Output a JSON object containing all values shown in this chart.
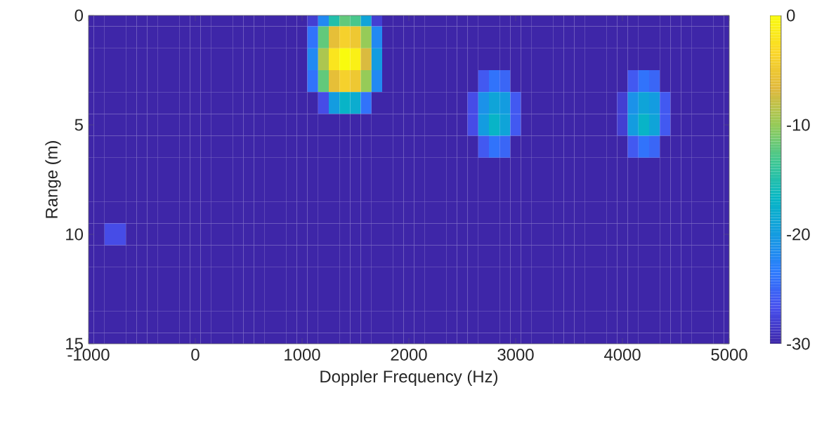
{
  "chart_data": {
    "type": "heatmap",
    "xlabel": "Doppler Frequency (Hz)",
    "ylabel": "Range (m)",
    "x": [
      -1000,
      -900,
      -800,
      -700,
      -600,
      -500,
      -400,
      -300,
      -200,
      -100,
      0,
      100,
      200,
      300,
      400,
      500,
      600,
      700,
      800,
      900,
      1000,
      1100,
      1200,
      1300,
      1400,
      1500,
      1600,
      1700,
      1800,
      1900,
      2000,
      2100,
      2200,
      2300,
      2400,
      2500,
      2600,
      2700,
      2800,
      2900,
      3000,
      3100,
      3200,
      3300,
      3400,
      3500,
      3600,
      3700,
      3800,
      3900,
      4000,
      4100,
      4200,
      4300,
      4400,
      4500,
      4600,
      4700,
      4800,
      4900,
      5000
    ],
    "y": [
      0,
      1,
      2,
      3,
      4,
      5,
      6,
      7,
      8,
      9,
      10,
      11,
      12,
      13,
      14,
      15
    ],
    "cells": [
      [
        -30,
        -30,
        -30,
        -30,
        -30,
        -30,
        -30,
        -30,
        -30,
        -30,
        -30,
        -30,
        -30,
        -30,
        -30,
        -30,
        -30,
        -30,
        -30,
        -30,
        -30,
        -28,
        -22,
        -15,
        -12,
        -13,
        -19,
        -28,
        -30,
        -30,
        -30,
        -30,
        -30,
        -30,
        -30,
        -30,
        -30,
        -30,
        -30,
        -30,
        -30,
        -30,
        -30,
        -30,
        -30,
        -30,
        -30,
        -30,
        -30,
        -30,
        -30,
        -30,
        -30,
        -30,
        -30,
        -30,
        -30,
        -30,
        -30,
        -30,
        -30
      ],
      [
        -30,
        -30,
        -30,
        -30,
        -30,
        -30,
        -30,
        -30,
        -30,
        -30,
        -30,
        -30,
        -30,
        -30,
        -30,
        -30,
        -30,
        -30,
        -30,
        -30,
        -30,
        -24,
        -12,
        -6,
        -4,
        -5,
        -10,
        -22,
        -30,
        -30,
        -30,
        -30,
        -30,
        -30,
        -30,
        -30,
        -30,
        -30,
        -30,
        -30,
        -30,
        -30,
        -30,
        -30,
        -30,
        -30,
        -30,
        -30,
        -30,
        -30,
        -30,
        -30,
        -30,
        -30,
        -30,
        -30,
        -30,
        -30,
        -30,
        -30,
        -30
      ],
      [
        -30,
        -30,
        -30,
        -30,
        -30,
        -30,
        -30,
        -30,
        -30,
        -30,
        -30,
        -30,
        -30,
        -30,
        -30,
        -30,
        -30,
        -30,
        -30,
        -30,
        -30,
        -22,
        -9,
        -2,
        0,
        -1,
        -7,
        -20,
        -30,
        -30,
        -30,
        -30,
        -30,
        -30,
        -30,
        -30,
        -30,
        -30,
        -30,
        -30,
        -30,
        -30,
        -30,
        -30,
        -30,
        -30,
        -30,
        -30,
        -30,
        -30,
        -30,
        -30,
        -30,
        -30,
        -30,
        -30,
        -30,
        -30,
        -30,
        -30,
        -30
      ],
      [
        -30,
        -30,
        -30,
        -30,
        -30,
        -30,
        -30,
        -30,
        -30,
        -30,
        -30,
        -30,
        -30,
        -30,
        -30,
        -30,
        -30,
        -30,
        -30,
        -30,
        -30,
        -24,
        -12,
        -6,
        -4,
        -5,
        -10,
        -22,
        -30,
        -30,
        -30,
        -30,
        -30,
        -30,
        -30,
        -30,
        -30,
        -26,
        -24,
        -25,
        -30,
        -30,
        -30,
        -30,
        -30,
        -30,
        -30,
        -30,
        -30,
        -30,
        -30,
        -26,
        -24,
        -25,
        -30,
        -30,
        -30,
        -30,
        -30,
        -30,
        -30
      ],
      [
        -30,
        -30,
        -30,
        -30,
        -30,
        -30,
        -30,
        -30,
        -30,
        -30,
        -30,
        -30,
        -30,
        -30,
        -30,
        -30,
        -30,
        -30,
        -30,
        -30,
        -30,
        -30,
        -27,
        -20,
        -17,
        -18,
        -24,
        -30,
        -30,
        -30,
        -30,
        -30,
        -30,
        -30,
        -30,
        -30,
        -27,
        -21,
        -19,
        -20,
        -26,
        -30,
        -30,
        -30,
        -30,
        -30,
        -30,
        -30,
        -30,
        -30,
        -28,
        -21,
        -19,
        -20,
        -26,
        -30,
        -30,
        -30,
        -30,
        -30,
        -30
      ],
      [
        -30,
        -30,
        -30,
        -30,
        -30,
        -30,
        -30,
        -30,
        -30,
        -30,
        -30,
        -30,
        -30,
        -30,
        -30,
        -30,
        -30,
        -30,
        -30,
        -30,
        -30,
        -30,
        -30,
        -30,
        -30,
        -30,
        -30,
        -30,
        -30,
        -30,
        -30,
        -30,
        -30,
        -30,
        -30,
        -30,
        -27,
        -20,
        -17,
        -19,
        -26,
        -30,
        -30,
        -30,
        -30,
        -30,
        -30,
        -30,
        -30,
        -30,
        -28,
        -20,
        -17,
        -19,
        -26,
        -30,
        -30,
        -30,
        -30,
        -30,
        -30
      ],
      [
        -30,
        -30,
        -30,
        -30,
        -30,
        -30,
        -30,
        -30,
        -30,
        -30,
        -30,
        -30,
        -30,
        -30,
        -30,
        -30,
        -30,
        -30,
        -30,
        -30,
        -30,
        -30,
        -30,
        -30,
        -30,
        -30,
        -30,
        -30,
        -30,
        -30,
        -30,
        -30,
        -30,
        -30,
        -30,
        -30,
        -30,
        -26,
        -24,
        -25,
        -30,
        -30,
        -30,
        -30,
        -30,
        -30,
        -30,
        -30,
        -30,
        -30,
        -30,
        -26,
        -24,
        -25,
        -30,
        -30,
        -30,
        -30,
        -30,
        -30,
        -30
      ],
      [
        -30,
        -30,
        -30,
        -30,
        -30,
        -30,
        -30,
        -30,
        -30,
        -30,
        -30,
        -30,
        -30,
        -30,
        -30,
        -30,
        -30,
        -30,
        -30,
        -30,
        -30,
        -30,
        -30,
        -30,
        -30,
        -30,
        -30,
        -30,
        -30,
        -30,
        -30,
        -30,
        -30,
        -30,
        -30,
        -30,
        -30,
        -30,
        -30,
        -30,
        -30,
        -30,
        -30,
        -30,
        -30,
        -30,
        -30,
        -30,
        -30,
        -30,
        -30,
        -30,
        -30,
        -30,
        -30,
        -30,
        -30,
        -30,
        -30,
        -30,
        -30
      ],
      [
        -30,
        -30,
        -30,
        -30,
        -30,
        -30,
        -30,
        -30,
        -30,
        -30,
        -30,
        -30,
        -30,
        -30,
        -30,
        -30,
        -30,
        -30,
        -30,
        -30,
        -30,
        -30,
        -30,
        -30,
        -30,
        -30,
        -30,
        -30,
        -30,
        -30,
        -30,
        -30,
        -30,
        -30,
        -30,
        -30,
        -30,
        -30,
        -30,
        -30,
        -30,
        -30,
        -30,
        -30,
        -30,
        -30,
        -30,
        -30,
        -30,
        -30,
        -30,
        -30,
        -30,
        -30,
        -30,
        -30,
        -30,
        -30,
        -30,
        -30,
        -30
      ],
      [
        -30,
        -30,
        -30,
        -30,
        -30,
        -30,
        -30,
        -30,
        -30,
        -30,
        -30,
        -30,
        -30,
        -30,
        -30,
        -30,
        -30,
        -30,
        -30,
        -30,
        -30,
        -30,
        -30,
        -30,
        -30,
        -30,
        -30,
        -30,
        -30,
        -30,
        -30,
        -30,
        -30,
        -30,
        -30,
        -30,
        -30,
        -30,
        -30,
        -30,
        -30,
        -30,
        -30,
        -30,
        -30,
        -30,
        -30,
        -30,
        -30,
        -30,
        -30,
        -30,
        -30,
        -30,
        -30,
        -30,
        -30,
        -30,
        -30,
        -30,
        -30
      ],
      [
        -30,
        -30,
        -27,
        -27,
        -30,
        -30,
        -30,
        -30,
        -30,
        -30,
        -30,
        -30,
        -30,
        -30,
        -30,
        -30,
        -30,
        -30,
        -30,
        -30,
        -30,
        -30,
        -30,
        -30,
        -30,
        -30,
        -30,
        -30,
        -30,
        -30,
        -30,
        -30,
        -30,
        -30,
        -30,
        -30,
        -30,
        -30,
        -30,
        -30,
        -30,
        -30,
        -30,
        -30,
        -30,
        -30,
        -30,
        -30,
        -30,
        -30,
        -30,
        -30,
        -30,
        -30,
        -30,
        -30,
        -30,
        -30,
        -30,
        -30,
        -30
      ],
      [
        -30,
        -30,
        -30,
        -30,
        -30,
        -30,
        -30,
        -30,
        -30,
        -30,
        -30,
        -30,
        -30,
        -30,
        -30,
        -30,
        -30,
        -30,
        -30,
        -30,
        -30,
        -30,
        -30,
        -30,
        -30,
        -30,
        -30,
        -30,
        -30,
        -30,
        -30,
        -30,
        -30,
        -30,
        -30,
        -30,
        -30,
        -30,
        -30,
        -30,
        -30,
        -30,
        -30,
        -30,
        -30,
        -30,
        -30,
        -30,
        -30,
        -30,
        -30,
        -30,
        -30,
        -30,
        -30,
        -30,
        -30,
        -30,
        -30,
        -30,
        -30
      ],
      [
        -30,
        -30,
        -30,
        -30,
        -30,
        -30,
        -30,
        -30,
        -30,
        -30,
        -30,
        -30,
        -30,
        -30,
        -30,
        -30,
        -30,
        -30,
        -30,
        -30,
        -30,
        -30,
        -30,
        -30,
        -30,
        -30,
        -30,
        -30,
        -30,
        -30,
        -30,
        -30,
        -30,
        -30,
        -30,
        -30,
        -30,
        -30,
        -30,
        -30,
        -30,
        -30,
        -30,
        -30,
        -30,
        -30,
        -30,
        -30,
        -30,
        -30,
        -30,
        -30,
        -30,
        -30,
        -30,
        -30,
        -30,
        -30,
        -30,
        -30,
        -30
      ],
      [
        -30,
        -30,
        -30,
        -30,
        -30,
        -30,
        -30,
        -30,
        -30,
        -30,
        -30,
        -30,
        -30,
        -30,
        -30,
        -30,
        -30,
        -30,
        -30,
        -30,
        -30,
        -30,
        -30,
        -30,
        -30,
        -30,
        -30,
        -30,
        -30,
        -30,
        -30,
        -30,
        -30,
        -30,
        -30,
        -30,
        -30,
        -30,
        -30,
        -30,
        -30,
        -30,
        -30,
        -30,
        -30,
        -30,
        -30,
        -30,
        -30,
        -30,
        -30,
        -30,
        -30,
        -30,
        -30,
        -30,
        -30,
        -30,
        -30,
        -30,
        -30
      ],
      [
        -30,
        -30,
        -30,
        -30,
        -30,
        -30,
        -30,
        -30,
        -30,
        -30,
        -30,
        -30,
        -30,
        -30,
        -30,
        -30,
        -30,
        -30,
        -30,
        -30,
        -30,
        -30,
        -30,
        -30,
        -30,
        -30,
        -30,
        -30,
        -30,
        -30,
        -30,
        -30,
        -30,
        -30,
        -30,
        -30,
        -30,
        -30,
        -30,
        -30,
        -30,
        -30,
        -30,
        -30,
        -30,
        -30,
        -30,
        -30,
        -30,
        -30,
        -30,
        -30,
        -30,
        -30,
        -30,
        -30,
        -30,
        -30,
        -30,
        -30,
        -30
      ],
      [
        -30,
        -30,
        -30,
        -30,
        -30,
        -30,
        -30,
        -30,
        -30,
        -30,
        -30,
        -30,
        -30,
        -30,
        -30,
        -30,
        -30,
        -30,
        -30,
        -30,
        -30,
        -30,
        -30,
        -30,
        -30,
        -30,
        -30,
        -30,
        -30,
        -30,
        -30,
        -30,
        -30,
        -30,
        -30,
        -30,
        -30,
        -30,
        -30,
        -30,
        -30,
        -30,
        -30,
        -30,
        -30,
        -30,
        -30,
        -30,
        -30,
        -30,
        -30,
        -30,
        -30,
        -30,
        -30,
        -30,
        -30,
        -30,
        -30,
        -30,
        -30
      ]
    ],
    "xlim": [
      -1000,
      5000
    ],
    "ylim": [
      15,
      0
    ],
    "xticks": [
      -1000,
      0,
      1000,
      2000,
      3000,
      4000,
      5000
    ],
    "yticks": [
      0,
      5,
      10,
      15
    ],
    "clim": [
      -30,
      0
    ],
    "cticks": [
      -30,
      -20,
      -10,
      0
    ]
  }
}
